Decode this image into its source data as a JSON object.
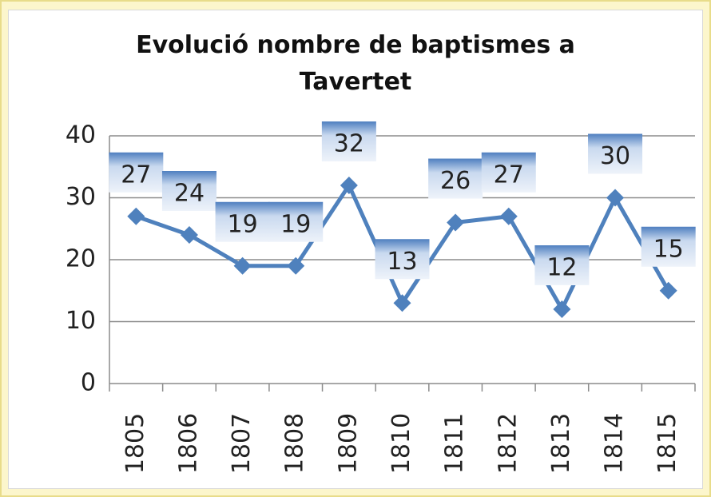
{
  "chart_data": {
    "type": "line",
    "title": "Evolució nombre de baptismes a Tavertet",
    "categories": [
      "1805",
      "1806",
      "1807",
      "1808",
      "1809",
      "1810",
      "1811",
      "1812",
      "1813",
      "1814",
      "1815"
    ],
    "values": [
      27,
      24,
      19,
      19,
      32,
      13,
      26,
      27,
      12,
      30,
      15
    ],
    "color": "#4f81bd",
    "ylim": [
      0,
      40
    ],
    "yticks": [
      0,
      10,
      20,
      30,
      40
    ],
    "grid": true
  }
}
